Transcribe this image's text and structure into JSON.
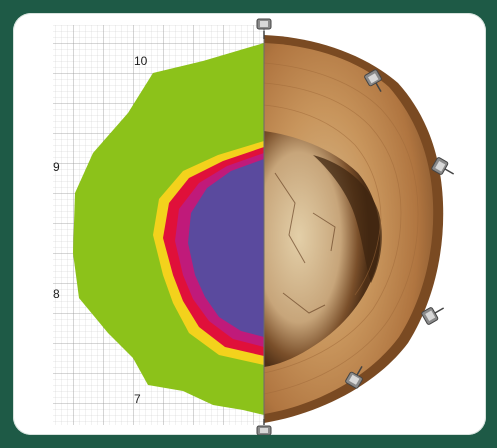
{
  "figure": {
    "scale_labels": [
      "10",
      "9",
      "8",
      "7"
    ],
    "colors": {
      "frame": "#1e5a46",
      "sound_wood": "#8cc21a",
      "transition_yellow": "#f3d21c",
      "transition_red": "#e0103a",
      "decay_core": "#5a4a9e",
      "bark": "#7a4a22",
      "sapwood": "#d9a470",
      "heartwood_decay": "#6b4525"
    },
    "sensors": [
      "sensor-icon",
      "sensor-icon",
      "sensor-icon",
      "sensor-icon",
      "sensor-icon",
      "sensor-icon",
      "sensor-icon"
    ]
  }
}
